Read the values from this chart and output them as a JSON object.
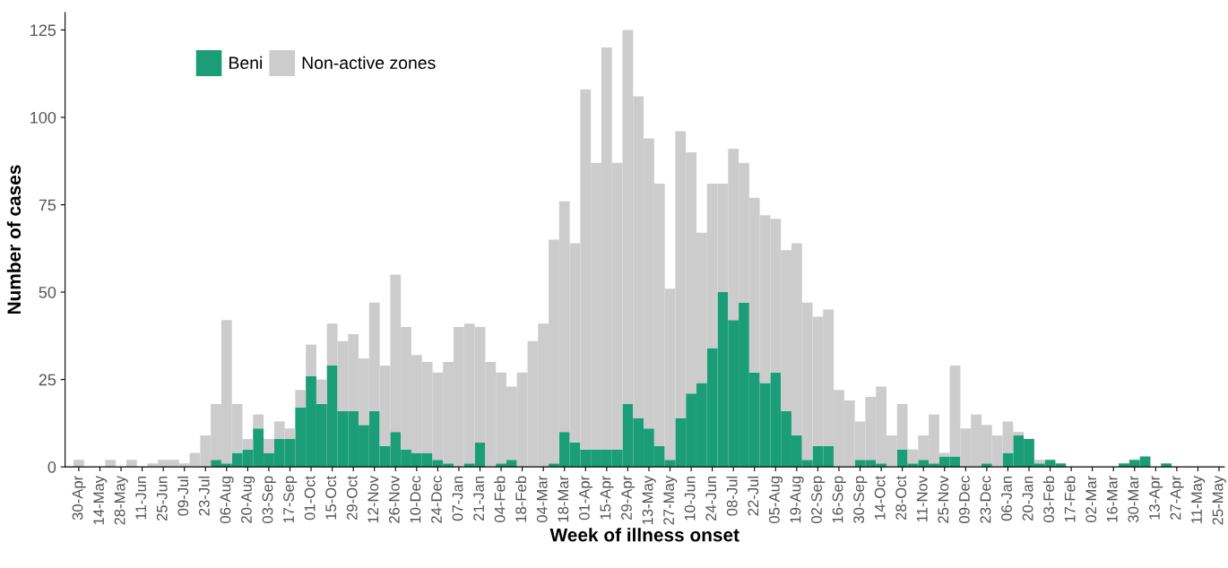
{
  "chart_data": {
    "type": "bar",
    "stacked": true,
    "xlabel": "Week of illness onset",
    "ylabel": "Number of cases",
    "categories": [
      "30-Apr",
      null,
      "14-May",
      null,
      "28-May",
      null,
      "11-Jun",
      null,
      "25-Jun",
      null,
      "09-Jul",
      null,
      "23-Jul",
      null,
      "06-Aug",
      null,
      "20-Aug",
      null,
      "03-Sep",
      null,
      "17-Sep",
      null,
      "01-Oct",
      null,
      "15-Oct",
      null,
      "29-Oct",
      null,
      "12-Nov",
      null,
      "26-Nov",
      null,
      "10-Dec",
      null,
      "24-Dec",
      null,
      "07-Jan",
      null,
      "21-Jan",
      null,
      "04-Feb",
      null,
      "18-Feb",
      null,
      "04-Mar",
      null,
      "18-Mar",
      null,
      "01-Apr",
      null,
      "15-Apr",
      null,
      "29-Apr",
      null,
      "13-May",
      null,
      "27-May",
      null,
      "10-Jun",
      null,
      "24-Jun",
      null,
      "08-Jul",
      null,
      "22-Jul",
      null,
      "05-Aug",
      null,
      "19-Aug",
      null,
      "02-Sep",
      null,
      "16-Sep",
      null,
      "30-Sep",
      null,
      "14-Oct",
      null,
      "28-Oct",
      null,
      "11-Nov",
      null,
      "25-Nov",
      null,
      "09-Dec",
      null,
      "23-Dec",
      null,
      "06-Jan",
      null,
      "20-Jan",
      null,
      "03-Feb",
      null,
      "17-Feb",
      null,
      "02-Mar",
      null,
      "16-Mar",
      null,
      "30-Mar",
      null,
      "13-Apr",
      null,
      "27-Apr",
      null,
      "11-May",
      null,
      "25-May"
    ],
    "series": [
      {
        "name": "Beni",
        "color": "#1b9e77",
        "values": [
          0,
          0,
          0,
          0,
          0,
          0,
          0,
          0,
          0,
          0,
          0,
          0,
          0,
          2,
          1,
          4,
          5,
          11,
          4,
          8,
          8,
          17,
          26,
          18,
          29,
          16,
          16,
          12,
          16,
          6,
          10,
          5,
          4,
          4,
          2,
          1,
          0,
          1,
          7,
          0,
          1,
          2,
          0,
          0,
          0,
          1,
          10,
          7,
          5,
          5,
          5,
          5,
          18,
          14,
          11,
          6,
          2,
          14,
          21,
          24,
          34,
          50,
          42,
          47,
          27,
          24,
          27,
          16,
          9,
          2,
          6,
          6,
          0,
          0,
          2,
          2,
          1,
          0,
          5,
          1,
          2,
          1,
          3,
          3,
          0,
          0,
          1,
          0,
          4,
          9,
          8,
          1,
          2,
          1,
          0,
          0,
          0,
          0,
          0,
          1,
          2,
          3,
          0,
          1,
          0,
          0,
          0,
          0,
          0
        ]
      },
      {
        "name": "Non-active zones",
        "color": "#cccccc",
        "values": [
          2,
          0,
          0,
          2,
          0,
          2,
          0,
          1,
          2,
          2,
          1,
          4,
          9,
          16,
          41,
          14,
          3,
          4,
          4,
          5,
          3,
          5,
          9,
          7,
          12,
          20,
          22,
          19,
          31,
          23,
          45,
          35,
          28,
          26,
          25,
          29,
          40,
          40,
          33,
          30,
          26,
          21,
          27,
          36,
          41,
          64,
          66,
          57,
          103,
          82,
          115,
          82,
          107,
          92,
          83,
          75,
          49,
          82,
          69,
          43,
          47,
          31,
          49,
          40,
          50,
          48,
          44,
          46,
          55,
          45,
          37,
          39,
          22,
          19,
          11,
          18,
          22,
          9,
          13,
          4,
          7,
          14,
          1,
          26,
          11,
          15,
          11,
          9,
          9,
          1,
          0,
          1,
          0,
          0,
          0,
          0,
          0,
          0,
          0,
          0,
          0,
          0,
          0,
          0,
          0,
          0,
          0,
          0,
          0
        ]
      }
    ],
    "ylim": [
      0,
      130
    ],
    "yticks": [
      0,
      25,
      50,
      75,
      100,
      125
    ],
    "legend": "top left",
    "grid": false
  }
}
